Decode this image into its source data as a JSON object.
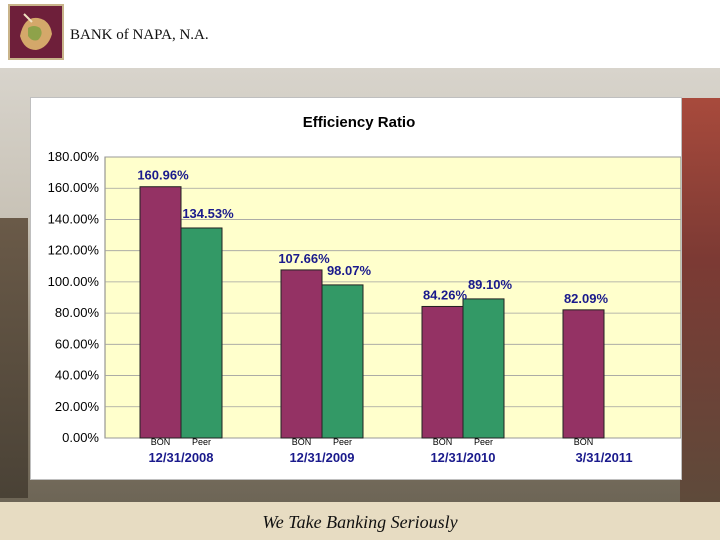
{
  "header": {
    "bank_name": "BANK of NAPA, N.A."
  },
  "footer": {
    "tagline": "We Take Banking Seriously"
  },
  "colors": {
    "bon": "#943264",
    "peer": "#339966",
    "plot_bg": "#ffffcc",
    "label": "#1a1a8c"
  },
  "chart_data": {
    "type": "bar",
    "title": "Efficiency Ratio",
    "categories": [
      "12/31/2008",
      "12/31/2009",
      "12/31/2010",
      "3/31/2011"
    ],
    "series": [
      {
        "name": "BON",
        "values": [
          160.96,
          107.66,
          84.26,
          82.09
        ],
        "labels": [
          "160.96%",
          "107.66%",
          "84.26%",
          "82.09%"
        ]
      },
      {
        "name": "Peer",
        "values": [
          134.53,
          98.07,
          89.1,
          null
        ],
        "labels": [
          "134.53%",
          "98.07%",
          "89.10%",
          null
        ]
      }
    ],
    "ylim": [
      0,
      180
    ],
    "yticks": [
      "0.00%",
      "20.00%",
      "40.00%",
      "60.00%",
      "80.00%",
      "100.00%",
      "120.00%",
      "140.00%",
      "160.00%",
      "180.00%"
    ],
    "grid": true,
    "legend": "none"
  }
}
